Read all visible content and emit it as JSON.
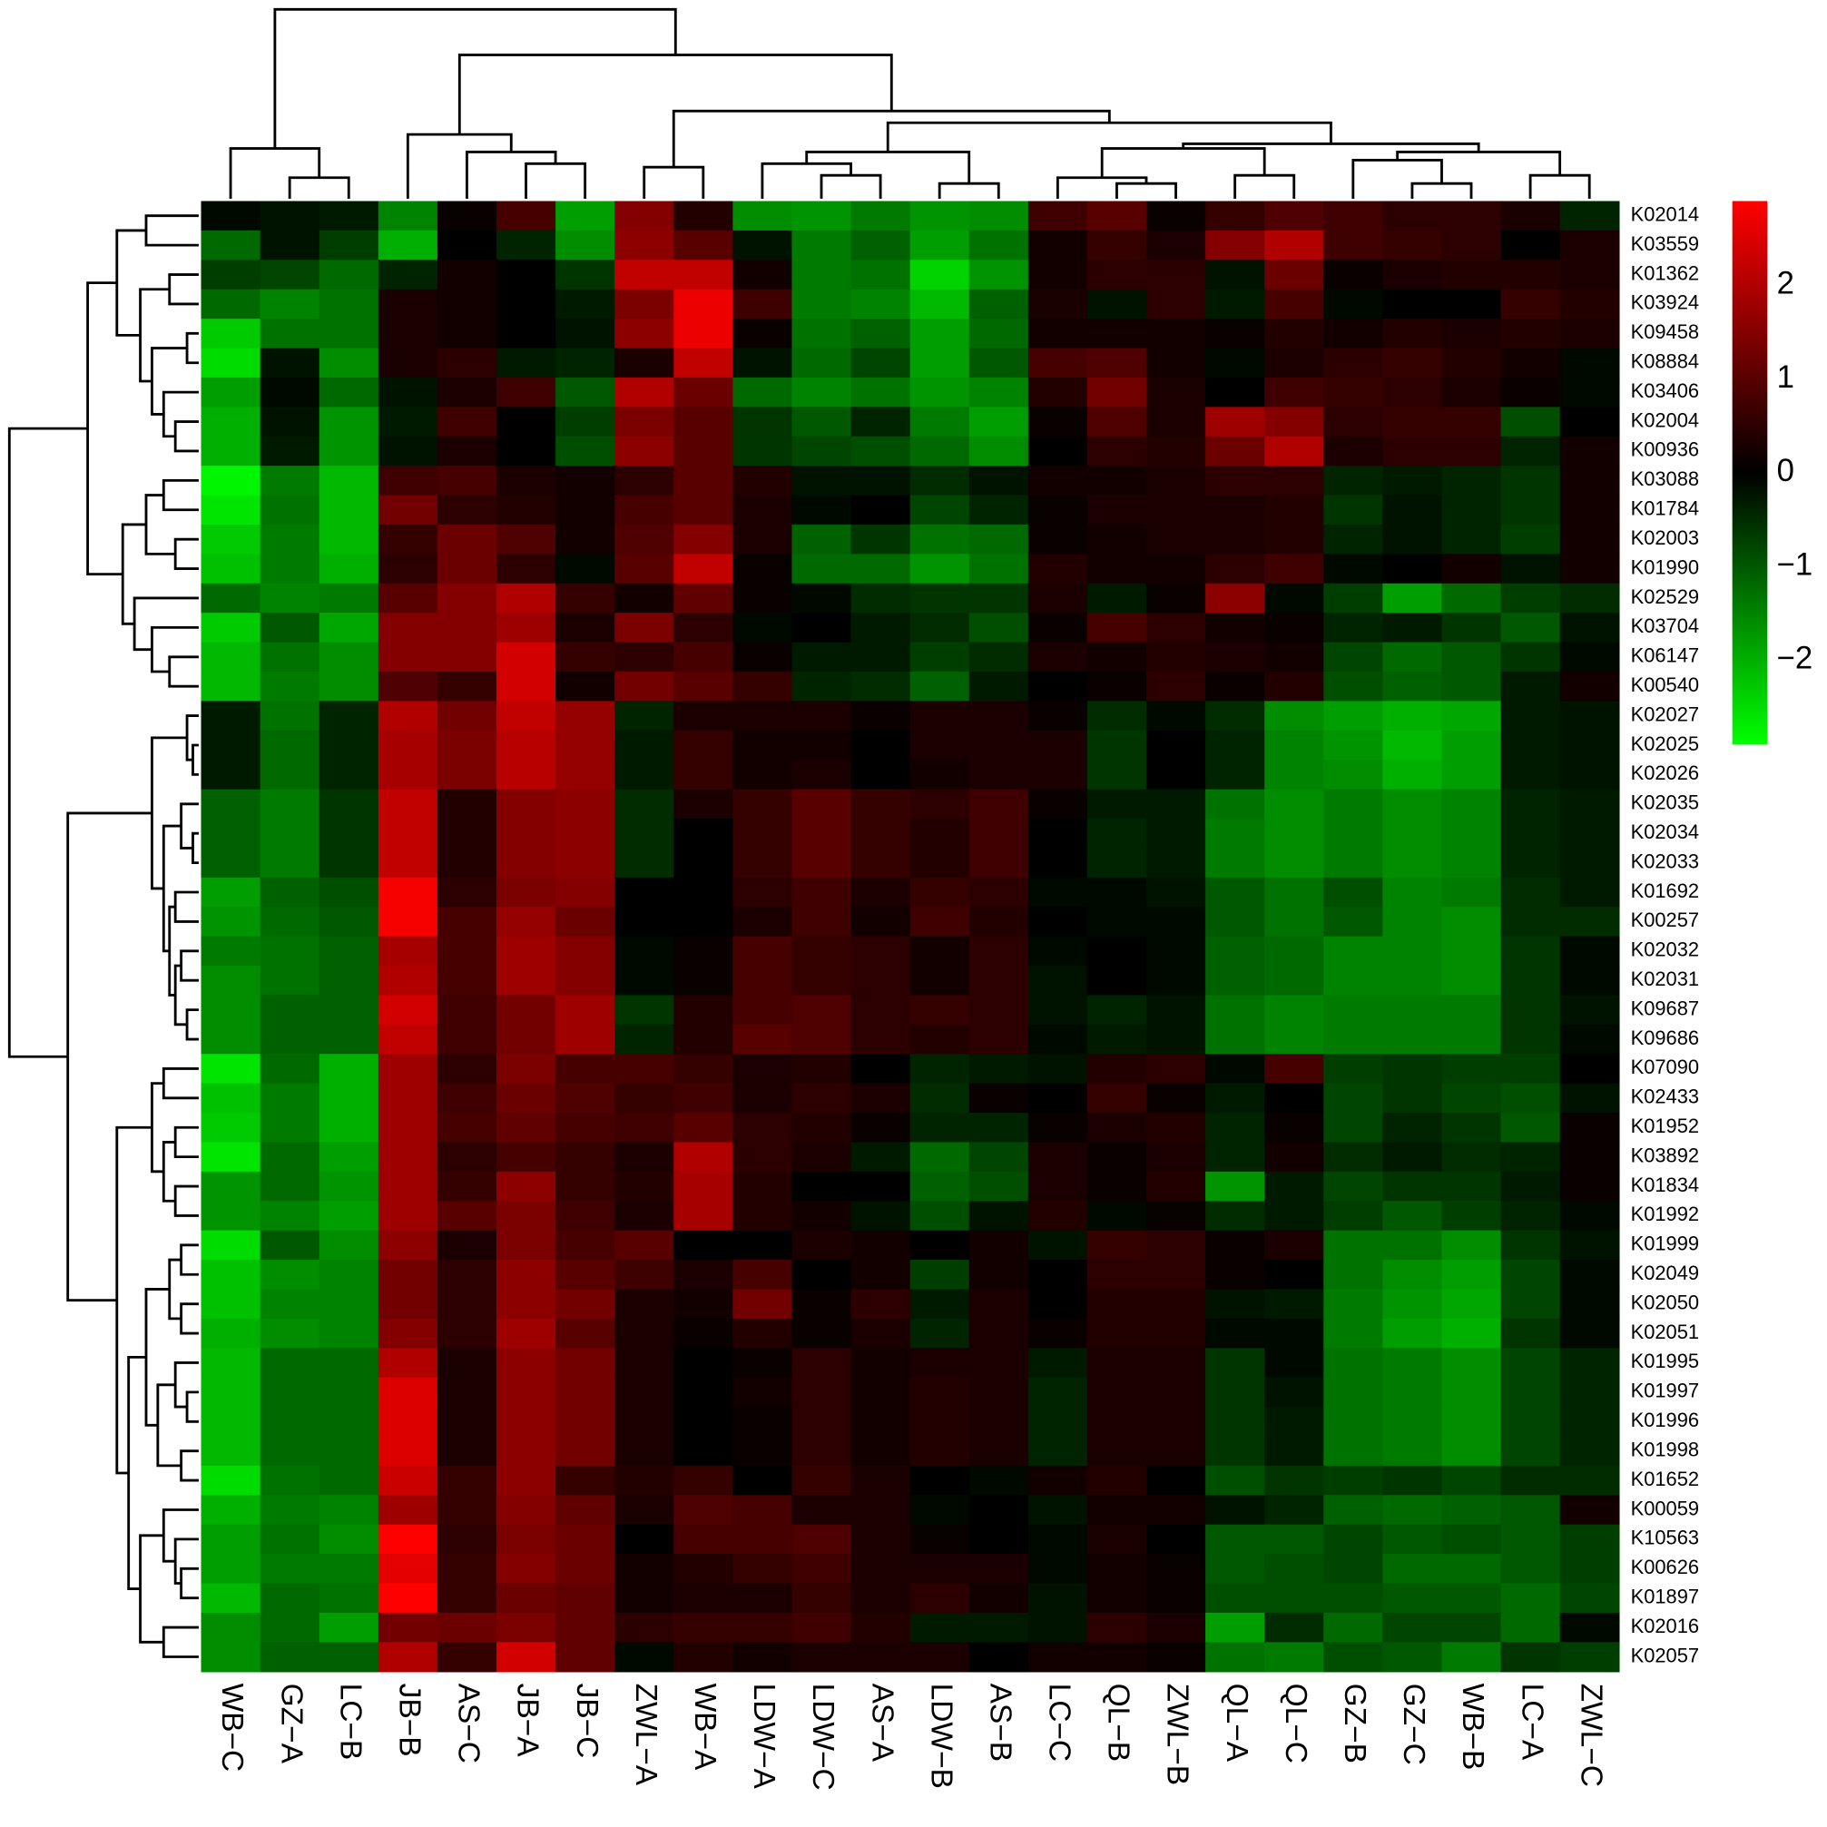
{
  "chart_data": {
    "type": "heatmap",
    "columns": [
      "WB−C",
      "GZ−A",
      "LC−B",
      "JB−B",
      "AS−C",
      "JB−A",
      "JB−C",
      "ZWL−A",
      "WB−A",
      "LDW−A",
      "LDW−C",
      "AS−A",
      "LDW−B",
      "AS−B",
      "LC−C",
      "QL−B",
      "ZWL−B",
      "QL−A",
      "QL−C",
      "GZ−B",
      "GZ−C",
      "WB−B",
      "LC−A",
      "ZWL−C"
    ],
    "rows": [
      "K02014",
      "K03559",
      "K01362",
      "K03924",
      "K09458",
      "K08884",
      "K03406",
      "K02004",
      "K00936",
      "K03088",
      "K01784",
      "K02003",
      "K01990",
      "K02529",
      "K03704",
      "K06147",
      "K00540",
      "K02027",
      "K02025",
      "K02026",
      "K02035",
      "K02034",
      "K02033",
      "K01692",
      "K00257",
      "K02032",
      "K02031",
      "K09687",
      "K09686",
      "K07090",
      "K02433",
      "K01952",
      "K03892",
      "K01834",
      "K01992",
      "K01999",
      "K02049",
      "K02050",
      "K02051",
      "K01995",
      "K01997",
      "K01996",
      "K01998",
      "K01652",
      "K00059",
      "K10563",
      "K00626",
      "K01897",
      "K02016",
      "K02057"
    ],
    "values": [
      [
        -0.1,
        -0.2,
        -0.3,
        -1.5,
        0.1,
        0.8,
        -1.8,
        1.5,
        0.4,
        -1.6,
        -1.7,
        -1.4,
        -1.7,
        -1.6,
        0.7,
        1.0,
        0.1,
        0.6,
        0.9,
        0.7,
        0.5,
        0.5,
        0.3,
        -0.4
      ],
      [
        -1.2,
        -0.2,
        -0.7,
        -2.0,
        0,
        -0.4,
        -1.6,
        1.6,
        1.0,
        -0.2,
        -1.4,
        -1.1,
        -1.8,
        -1.3,
        0.2,
        0.6,
        0.3,
        1.5,
        2.0,
        0.7,
        0.6,
        0.5,
        0,
        0.3
      ],
      [
        -0.7,
        -0.8,
        -1.2,
        -0.4,
        0.2,
        0,
        -0.6,
        2.2,
        2.2,
        0.2,
        -1.4,
        -1.3,
        -2.4,
        -1.7,
        0.2,
        0.5,
        0.5,
        -0.2,
        1.2,
        0.1,
        0.3,
        0.4,
        0.4,
        0.3
      ],
      [
        -1.2,
        -1.5,
        -1.3,
        0.3,
        0.2,
        0,
        -0.3,
        1.4,
        2.7,
        0.7,
        -1.4,
        -1.5,
        -2.1,
        -1.1,
        0.3,
        -0.2,
        0.5,
        -0.3,
        0.8,
        -0.1,
        0,
        0,
        0.6,
        0.4
      ],
      [
        -2.3,
        -1.3,
        -1.3,
        0.3,
        0.2,
        0,
        -0.2,
        1.6,
        2.7,
        0.1,
        -1.3,
        -1.1,
        -1.8,
        -1.2,
        0.2,
        0.2,
        0.2,
        0.1,
        0.4,
        0.2,
        0.4,
        0.3,
        0.4,
        0.3
      ],
      [
        -2.5,
        -0.2,
        -1.6,
        0.3,
        0.5,
        -0.3,
        -0.4,
        0.3,
        2.2,
        -0.2,
        -1.2,
        -0.8,
        -1.8,
        -1.0,
        0.8,
        0.9,
        0.2,
        -0.1,
        0.3,
        0.5,
        0.6,
        0.4,
        0.2,
        -0.1
      ],
      [
        -1.8,
        -0.1,
        -1.2,
        -0.2,
        0.3,
        0.7,
        -1.0,
        2.0,
        1.2,
        -1.2,
        -1.5,
        -1.3,
        -1.7,
        -1.5,
        0.4,
        1.3,
        0.3,
        0,
        0.7,
        0.6,
        0.5,
        0.3,
        0.1,
        -0.1
      ],
      [
        -2.0,
        -0.2,
        -1.7,
        -0.3,
        0.7,
        0,
        -0.7,
        1.4,
        1.0,
        -0.6,
        -1.0,
        -0.4,
        -1.4,
        -1.8,
        0.1,
        0.9,
        0.3,
        1.8,
        1.5,
        0.5,
        0.6,
        0.6,
        -0.9,
        0
      ],
      [
        -2.0,
        -0.3,
        -1.7,
        -0.2,
        0.3,
        0,
        -0.9,
        1.6,
        1.0,
        -0.6,
        -0.8,
        -0.9,
        -1.2,
        -1.6,
        0,
        0.5,
        0.4,
        1.2,
        2.0,
        0.3,
        0.5,
        0.5,
        -0.4,
        0.2
      ],
      [
        -2.8,
        -1.4,
        -2.1,
        0.7,
        0.8,
        0.3,
        0.2,
        0.5,
        1.0,
        0.4,
        -0.2,
        -0.2,
        -0.5,
        -0.2,
        0.2,
        0.2,
        0.3,
        0.5,
        0.5,
        -0.4,
        -0.3,
        -0.4,
        -0.6,
        0.2
      ],
      [
        -2.6,
        -1.3,
        -2.1,
        1.3,
        0.5,
        0.4,
        0.2,
        0.8,
        1.0,
        0.3,
        -0.1,
        0,
        -0.8,
        -0.4,
        0.1,
        0.3,
        0.3,
        0.3,
        0.4,
        -0.6,
        -0.2,
        -0.4,
        -0.6,
        0.2
      ],
      [
        -2.3,
        -1.4,
        -2.1,
        0.6,
        1.2,
        0.9,
        0.2,
        0.9,
        1.5,
        0.3,
        -1.1,
        -0.6,
        -1.3,
        -1.2,
        0.1,
        0.2,
        0.3,
        0.3,
        0.4,
        -0.4,
        -0.2,
        -0.4,
        -0.7,
        0.2
      ],
      [
        -2.2,
        -1.4,
        -2.0,
        0.5,
        1.2,
        0.5,
        -0.1,
        1.0,
        2.2,
        0.1,
        -1.2,
        -1.2,
        -1.7,
        -1.3,
        0.4,
        0.2,
        0.2,
        0.5,
        0.7,
        -0.1,
        0,
        0.2,
        -0.2,
        0.2
      ],
      [
        -1.2,
        -1.5,
        -1.4,
        1.0,
        1.5,
        2.0,
        0.6,
        0.2,
        1.1,
        0.1,
        -0.1,
        -0.5,
        -0.6,
        -0.6,
        0.3,
        -0.3,
        0.1,
        1.6,
        -0.1,
        -0.7,
        -1.8,
        -1.2,
        -0.7,
        -0.5
      ],
      [
        -2.3,
        -1.0,
        -1.9,
        1.5,
        1.5,
        1.8,
        0.3,
        1.4,
        0.5,
        -0.1,
        0,
        -0.3,
        -0.5,
        -0.9,
        0.1,
        0.8,
        0.5,
        0.2,
        0.1,
        -0.4,
        -0.3,
        -0.6,
        -1.0,
        -0.2
      ],
      [
        -2.1,
        -1.3,
        -1.6,
        1.5,
        1.5,
        2.4,
        0.6,
        0.5,
        0.8,
        0.1,
        -0.3,
        -0.3,
        -0.7,
        -0.5,
        0.3,
        0.2,
        0.4,
        0.3,
        0.2,
        -0.8,
        -1.2,
        -1.0,
        -0.6,
        -0.1
      ],
      [
        -2.1,
        -1.4,
        -1.6,
        0.9,
        0.6,
        2.4,
        0.2,
        1.3,
        1.0,
        0.6,
        -0.4,
        -0.5,
        -1.1,
        -0.3,
        0,
        0.1,
        0.5,
        0.1,
        0.4,
        -0.9,
        -1.1,
        -1.0,
        -0.3,
        0.2
      ],
      [
        -0.3,
        -1.3,
        -0.4,
        2.0,
        1.3,
        2.2,
        1.7,
        -0.4,
        0.3,
        0.3,
        0.3,
        0.1,
        0.3,
        0.3,
        0.1,
        -0.5,
        -0.1,
        -0.5,
        -1.6,
        -1.8,
        -2.0,
        -1.9,
        -0.3,
        -0.2
      ],
      [
        -0.3,
        -1.2,
        -0.4,
        1.9,
        1.4,
        2.1,
        1.7,
        -0.3,
        0.6,
        0.2,
        0.2,
        0,
        0.3,
        0.3,
        0.3,
        -0.6,
        0,
        -0.4,
        -1.5,
        -1.7,
        -2.1,
        -1.8,
        -0.3,
        -0.2
      ],
      [
        -0.3,
        -1.2,
        -0.4,
        1.9,
        1.4,
        2.1,
        1.7,
        -0.3,
        0.6,
        0.2,
        0.3,
        0,
        0.2,
        0.3,
        0.3,
        -0.6,
        0,
        -0.4,
        -1.5,
        -1.6,
        -2.0,
        -1.8,
        -0.3,
        -0.2
      ],
      [
        -1.1,
        -1.4,
        -0.6,
        2.2,
        0.4,
        1.5,
        1.6,
        -0.5,
        0.3,
        0.6,
        1.0,
        0.6,
        0.5,
        0.7,
        0.1,
        -0.3,
        -0.3,
        -1.3,
        -1.6,
        -1.4,
        -1.6,
        -1.5,
        -0.4,
        -0.3
      ],
      [
        -1.1,
        -1.4,
        -0.6,
        2.2,
        0.4,
        1.5,
        1.6,
        -0.5,
        0,
        0.6,
        1.0,
        0.6,
        0.4,
        0.7,
        0,
        -0.4,
        -0.3,
        -1.4,
        -1.6,
        -1.4,
        -1.6,
        -1.5,
        -0.4,
        -0.3
      ],
      [
        -1.1,
        -1.4,
        -0.6,
        2.2,
        0.4,
        1.5,
        1.6,
        -0.5,
        0,
        0.6,
        1.0,
        0.6,
        0.4,
        0.7,
        0,
        -0.4,
        -0.3,
        -1.4,
        -1.6,
        -1.4,
        -1.6,
        -1.5,
        -0.4,
        -0.3
      ],
      [
        -1.8,
        -1.1,
        -0.9,
        2.8,
        0.5,
        1.4,
        1.5,
        0,
        0,
        0.5,
        0.7,
        0.3,
        0.6,
        0.5,
        -0.1,
        -0.1,
        -0.2,
        -1.0,
        -1.3,
        -0.9,
        -1.5,
        -1.4,
        -0.5,
        -0.3
      ],
      [
        -1.7,
        -1.2,
        -1.0,
        2.8,
        0.8,
        1.7,
        1.2,
        0,
        0,
        0.3,
        0.7,
        0.2,
        0.7,
        0.4,
        0,
        -0.1,
        -0.1,
        -1.0,
        -1.3,
        -1.0,
        -1.5,
        -1.6,
        -0.5,
        -0.5
      ],
      [
        -1.4,
        -1.3,
        -1.1,
        1.9,
        0.8,
        1.8,
        1.5,
        -0.1,
        0.1,
        0.8,
        0.6,
        0.5,
        0.2,
        0.5,
        -0.1,
        0,
        -0.1,
        -1.1,
        -1.2,
        -1.5,
        -1.5,
        -1.6,
        -0.6,
        -0.1
      ],
      [
        -1.6,
        -1.3,
        -1.1,
        2.0,
        0.8,
        1.8,
        1.5,
        -0.1,
        0.1,
        0.8,
        0.6,
        0.5,
        0.2,
        0.5,
        -0.2,
        0,
        -0.1,
        -1.1,
        -1.2,
        -1.5,
        -1.5,
        -1.6,
        -0.6,
        -0.1
      ],
      [
        -1.6,
        -1.1,
        -1.1,
        2.4,
        0.7,
        1.3,
        1.8,
        -0.6,
        0.4,
        0.8,
        0.9,
        0.5,
        0.6,
        0.5,
        -0.2,
        -0.4,
        -0.2,
        -1.3,
        -1.5,
        -1.4,
        -1.4,
        -1.4,
        -0.6,
        -0.2
      ],
      [
        -1.6,
        -1.1,
        -1.1,
        2.2,
        0.7,
        1.3,
        1.8,
        -0.4,
        0.4,
        1.0,
        0.9,
        0.5,
        0.4,
        0.5,
        -0.1,
        -0.3,
        -0.2,
        -1.3,
        -1.5,
        -1.4,
        -1.4,
        -1.4,
        -0.6,
        -0.1
      ],
      [
        -2.6,
        -1.2,
        -2.0,
        1.8,
        0.5,
        1.4,
        0.8,
        0.8,
        0.6,
        0.3,
        0.4,
        0,
        -0.4,
        -0.3,
        -0.2,
        0.4,
        0.5,
        -0.1,
        0.8,
        -0.7,
        -0.6,
        -0.7,
        -0.7,
        0
      ],
      [
        -2.2,
        -1.4,
        -2.0,
        1.8,
        0.7,
        1.2,
        0.9,
        0.6,
        0.7,
        0.3,
        0.5,
        0.3,
        -0.5,
        0.1,
        0,
        0.6,
        0.1,
        -0.3,
        0,
        -0.8,
        -0.6,
        -0.8,
        -0.9,
        -0.2
      ],
      [
        -2.3,
        -1.4,
        -2.0,
        1.8,
        0.8,
        1.1,
        0.8,
        0.7,
        1.0,
        0.5,
        0.4,
        0.1,
        -0.4,
        -0.4,
        0.1,
        0.3,
        0.4,
        -0.4,
        0.1,
        -0.8,
        -0.4,
        -0.6,
        -1.0,
        0.1
      ],
      [
        -2.6,
        -1.2,
        -1.8,
        1.8,
        0.5,
        0.8,
        0.6,
        0.3,
        2.0,
        0.5,
        0.3,
        -0.3,
        -1.2,
        -0.8,
        0.3,
        0.1,
        0.3,
        -0.4,
        0.2,
        -0.5,
        -0.3,
        -0.5,
        -0.4,
        0.1
      ],
      [
        -1.7,
        -1.2,
        -1.7,
        1.8,
        0.6,
        1.6,
        0.6,
        0.4,
        1.9,
        0.4,
        0,
        0,
        -1.1,
        -0.9,
        0.3,
        0.1,
        0.4,
        -1.7,
        -0.3,
        -0.8,
        -0.6,
        -0.6,
        -0.3,
        0.1
      ],
      [
        -1.7,
        -1.5,
        -1.8,
        1.8,
        1.0,
        1.4,
        0.7,
        0.3,
        1.9,
        0.4,
        0.2,
        -0.2,
        -0.9,
        -0.2,
        0.4,
        -0.1,
        0.1,
        -0.5,
        -0.3,
        -0.7,
        -1.0,
        -0.7,
        -0.4,
        -0.1
      ],
      [
        -2.5,
        -1.0,
        -1.6,
        1.6,
        0.3,
        1.4,
        0.8,
        1.0,
        0,
        0,
        0.3,
        0.2,
        0,
        0.2,
        -0.2,
        0.6,
        0.5,
        0.1,
        0.3,
        -1.3,
        -1.3,
        -1.6,
        -0.6,
        -0.2
      ],
      [
        -2.2,
        -1.6,
        -1.5,
        1.3,
        0.5,
        1.6,
        1.0,
        0.7,
        0.3,
        0.8,
        0,
        0.2,
        -0.7,
        0.2,
        0,
        0.5,
        0.5,
        0.1,
        0,
        -1.3,
        -1.6,
        -1.8,
        -0.8,
        -0.1
      ],
      [
        -2.2,
        -1.5,
        -1.5,
        1.3,
        0.5,
        1.6,
        1.3,
        0.3,
        0.2,
        1.3,
        0.1,
        0.5,
        -0.3,
        0.3,
        0,
        0.4,
        0.4,
        -0.2,
        -0.3,
        -1.4,
        -1.7,
        -1.9,
        -0.8,
        -0.1
      ],
      [
        -2.0,
        -1.6,
        -1.5,
        1.5,
        0.5,
        1.8,
        1.0,
        0.3,
        0.1,
        0.4,
        0.1,
        0.3,
        -0.4,
        0.3,
        0.1,
        0.4,
        0.4,
        -0.1,
        -0.1,
        -1.4,
        -1.8,
        -2.0,
        -0.6,
        -0.1
      ],
      [
        -2.1,
        -1.2,
        -1.2,
        2.0,
        0.3,
        1.6,
        1.3,
        0.3,
        0,
        0.1,
        0.5,
        0.2,
        0.3,
        0.3,
        -0.3,
        0.3,
        0.3,
        -0.6,
        -0.1,
        -1.3,
        -1.4,
        -1.6,
        -0.8,
        -0.4
      ],
      [
        -2.1,
        -1.2,
        -1.2,
        2.5,
        0.3,
        1.6,
        1.3,
        0.3,
        0,
        0.2,
        0.5,
        0.2,
        0.4,
        0.3,
        -0.4,
        0.3,
        0.3,
        -0.6,
        -0.2,
        -1.3,
        -1.4,
        -1.6,
        -0.8,
        -0.4
      ],
      [
        -2.1,
        -1.2,
        -1.2,
        2.5,
        0.3,
        1.6,
        1.3,
        0.3,
        0,
        0.1,
        0.5,
        0.2,
        0.4,
        0.3,
        -0.4,
        0.3,
        0.3,
        -0.6,
        -0.3,
        -1.3,
        -1.4,
        -1.6,
        -0.8,
        -0.4
      ],
      [
        -2.1,
        -1.2,
        -1.2,
        2.5,
        0.3,
        1.6,
        1.3,
        0.3,
        0,
        0.1,
        0.5,
        0.2,
        0.4,
        0.3,
        -0.4,
        0.3,
        0.3,
        -0.6,
        -0.3,
        -1.3,
        -1.4,
        -1.6,
        -0.8,
        -0.4
      ],
      [
        -2.5,
        -1.3,
        -1.2,
        2.3,
        0.6,
        1.6,
        0.6,
        0.4,
        0.6,
        0,
        0.6,
        0.3,
        0,
        -0.1,
        0.2,
        0.4,
        0,
        -0.9,
        -0.6,
        -0.7,
        -0.6,
        -0.8,
        -0.5,
        -0.5
      ],
      [
        -2.0,
        -1.4,
        -1.5,
        1.8,
        0.6,
        1.5,
        1.1,
        0.3,
        0.9,
        0.8,
        0.3,
        0.3,
        -0.1,
        0,
        -0.2,
        0.2,
        0.2,
        -0.2,
        -0.4,
        -1.1,
        -1.2,
        -1.1,
        -1.0,
        0.2
      ],
      [
        -1.8,
        -1.3,
        -1.6,
        2.9,
        0.5,
        1.4,
        1.2,
        0,
        0.8,
        0.8,
        0.9,
        0.3,
        0.1,
        0,
        -0.1,
        0.3,
        0,
        -1.0,
        -1.0,
        -0.8,
        -1.0,
        -0.9,
        -1.0,
        -0.7
      ],
      [
        -1.8,
        -1.4,
        -1.4,
        2.6,
        0.6,
        1.5,
        1.2,
        0.2,
        0.4,
        0.6,
        0.7,
        0.3,
        0.3,
        0.3,
        -0.1,
        0.2,
        0.1,
        -1.0,
        -0.9,
        -0.8,
        -1.2,
        -1.2,
        -1.0,
        -0.7
      ],
      [
        -2.1,
        -1.2,
        -1.3,
        2.9,
        0.6,
        1.2,
        1.1,
        0.2,
        0.3,
        0.3,
        0.6,
        0.3,
        0.5,
        0.2,
        -0.2,
        0.2,
        0.1,
        -0.9,
        -0.9,
        -0.9,
        -1.0,
        -1.0,
        -1.2,
        -0.8
      ],
      [
        -1.6,
        -1.2,
        -1.8,
        1.3,
        1.2,
        1.4,
        1.1,
        0.5,
        0.6,
        0.6,
        0.7,
        0.4,
        -0.3,
        -0.3,
        -0.2,
        0.5,
        0.3,
        -1.8,
        -0.5,
        -1.2,
        -0.8,
        -0.8,
        -1.2,
        -0.1
      ],
      [
        -1.6,
        -1.1,
        -1.1,
        2.0,
        0.6,
        2.4,
        1.1,
        -0.1,
        0.4,
        0.2,
        0.3,
        0.3,
        0.3,
        0,
        0.2,
        0.2,
        0.1,
        -1.3,
        -1.4,
        -0.9,
        -1.0,
        -1.4,
        -0.6,
        -0.7
      ]
    ],
    "colors": [
      "#00ff00",
      "#000000",
      "#ff0000"
    ],
    "colorbar_lim": [
      -2.9,
      2.9
    ],
    "colorbar_ticks": [
      2,
      1,
      0,
      {
        "value": -1,
        "label": "−1"
      },
      {
        "value": -2,
        "label": "−2"
      }
    ]
  }
}
